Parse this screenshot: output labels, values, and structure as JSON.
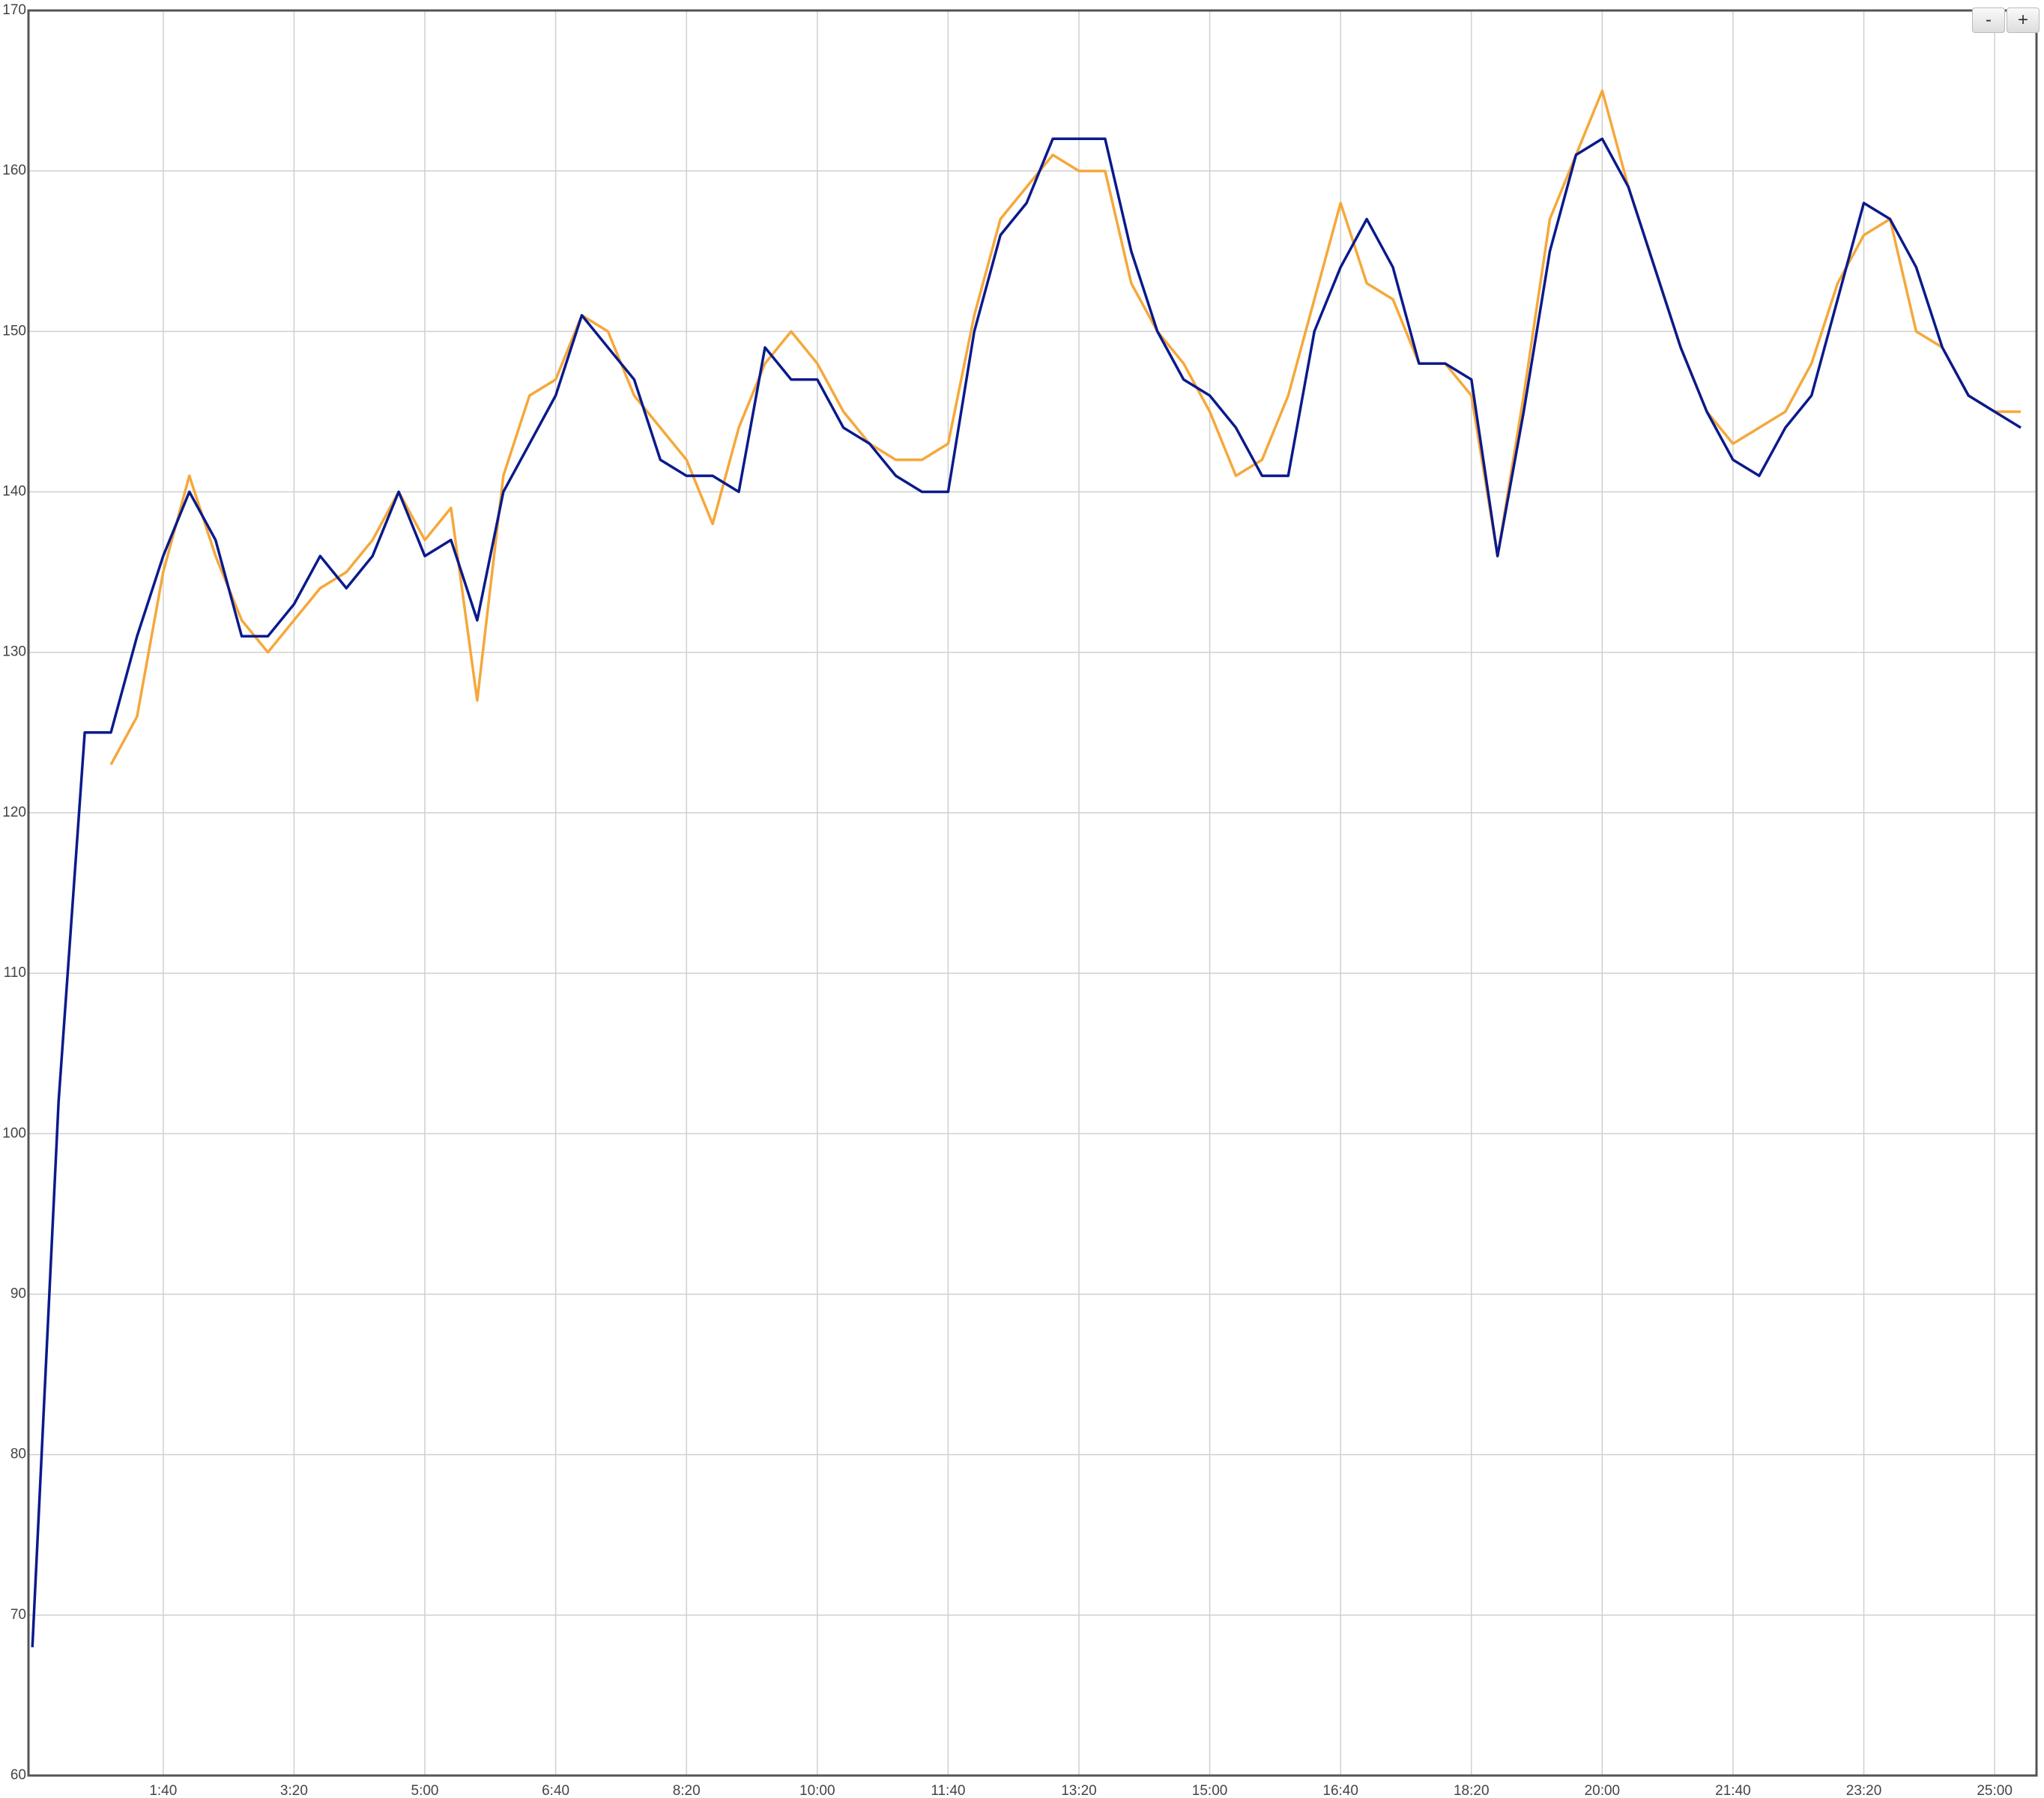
{
  "chart_data": {
    "type": "line",
    "x": [
      0,
      20,
      40,
      60,
      80,
      100,
      120,
      140,
      160,
      180,
      200,
      220,
      240,
      260,
      280,
      300,
      320,
      340,
      360,
      380,
      400,
      420,
      440,
      460,
      480,
      500,
      520,
      540,
      560,
      580,
      600,
      620,
      640,
      660,
      680,
      700,
      720,
      740,
      760,
      780,
      800,
      820,
      840,
      860,
      880,
      900,
      920,
      940,
      960,
      980,
      1000,
      1020,
      1040,
      1060,
      1080,
      1100,
      1120,
      1140,
      1160,
      1180,
      1200,
      1220,
      1240,
      1260,
      1280,
      1300,
      1320,
      1340,
      1360,
      1380,
      1400,
      1420,
      1440,
      1460,
      1480,
      1500,
      1520
    ],
    "series": [
      {
        "color": "#f5a83a",
        "values": [
          null,
          null,
          null,
          123,
          126,
          135,
          141,
          136,
          132,
          130,
          132,
          134,
          135,
          137,
          140,
          137,
          139,
          127,
          141,
          146,
          147,
          151,
          150,
          146,
          144,
          142,
          138,
          144,
          148,
          150,
          148,
          145,
          143,
          142,
          142,
          143,
          151,
          157,
          159,
          161,
          160,
          160,
          153,
          150,
          148,
          145,
          141,
          142,
          146,
          152,
          158,
          153,
          152,
          148,
          148,
          146,
          136,
          146,
          157,
          161,
          165,
          159,
          154,
          149,
          145,
          143,
          144,
          145,
          148,
          153,
          156,
          157,
          150,
          149,
          146,
          145,
          145
        ]
      },
      {
        "color": "#0a1a8c",
        "values": [
          68,
          102,
          125,
          125,
          131,
          136,
          140,
          137,
          131,
          131,
          133,
          136,
          134,
          136,
          140,
          136,
          137,
          132,
          140,
          143,
          146,
          151,
          149,
          147,
          142,
          141,
          141,
          140,
          149,
          147,
          147,
          144,
          143,
          141,
          140,
          140,
          150,
          156,
          158,
          162,
          162,
          162,
          155,
          150,
          147,
          146,
          144,
          141,
          141,
          150,
          154,
          157,
          154,
          148,
          148,
          147,
          136,
          145,
          155,
          161,
          162,
          159,
          154,
          149,
          145,
          142,
          141,
          144,
          146,
          152,
          158,
          157,
          154,
          149,
          146,
          145,
          144
        ]
      }
    ],
    "xlim": [
      -3,
      1532
    ],
    "xticks": [
      {
        "value": 100,
        "label": "1:40"
      },
      {
        "value": 200,
        "label": "3:20"
      },
      {
        "value": 300,
        "label": "5:00"
      },
      {
        "value": 400,
        "label": "6:40"
      },
      {
        "value": 500,
        "label": "8:20"
      },
      {
        "value": 600,
        "label": "10:00"
      },
      {
        "value": 700,
        "label": "11:40"
      },
      {
        "value": 800,
        "label": "13:20"
      },
      {
        "value": 900,
        "label": "15:00"
      },
      {
        "value": 1000,
        "label": "16:40"
      },
      {
        "value": 1100,
        "label": "18:20"
      },
      {
        "value": 1200,
        "label": "20:00"
      },
      {
        "value": 1300,
        "label": "21:40"
      },
      {
        "value": 1400,
        "label": "23:20"
      },
      {
        "value": 1500,
        "label": "25:00"
      }
    ],
    "ylim": [
      60,
      170
    ],
    "yticks": [
      60,
      70,
      80,
      90,
      100,
      110,
      120,
      130,
      140,
      150,
      160,
      170
    ],
    "grid": true
  },
  "controls": {
    "zoom_out": "-",
    "zoom_in": "+"
  }
}
